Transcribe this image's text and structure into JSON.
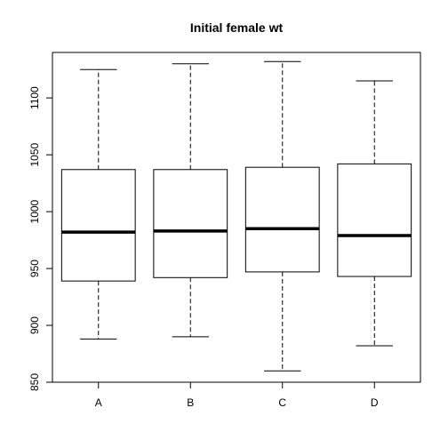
{
  "chart_data": {
    "type": "box",
    "title": "Initial female wt",
    "xlabel": "",
    "ylabel": "",
    "ylim": [
      850,
      1140
    ],
    "yticks": [
      850,
      900,
      950,
      1000,
      1050,
      1100
    ],
    "categories": [
      "A",
      "B",
      "C",
      "D"
    ],
    "boxes": [
      {
        "category": "A",
        "min": 888,
        "q1": 939,
        "median": 982,
        "q3": 1037,
        "max": 1125
      },
      {
        "category": "B",
        "min": 890,
        "q1": 942,
        "median": 983,
        "q3": 1037,
        "max": 1130
      },
      {
        "category": "C",
        "min": 860,
        "q1": 947,
        "median": 985,
        "q3": 1039,
        "max": 1132
      },
      {
        "category": "D",
        "min": 882,
        "q1": 943,
        "median": 979,
        "q3": 1042,
        "max": 1115
      }
    ],
    "grid": false,
    "colors": {
      "stroke": "#000000",
      "box_fill": "#ffffff",
      "background": "#ffffff"
    }
  }
}
